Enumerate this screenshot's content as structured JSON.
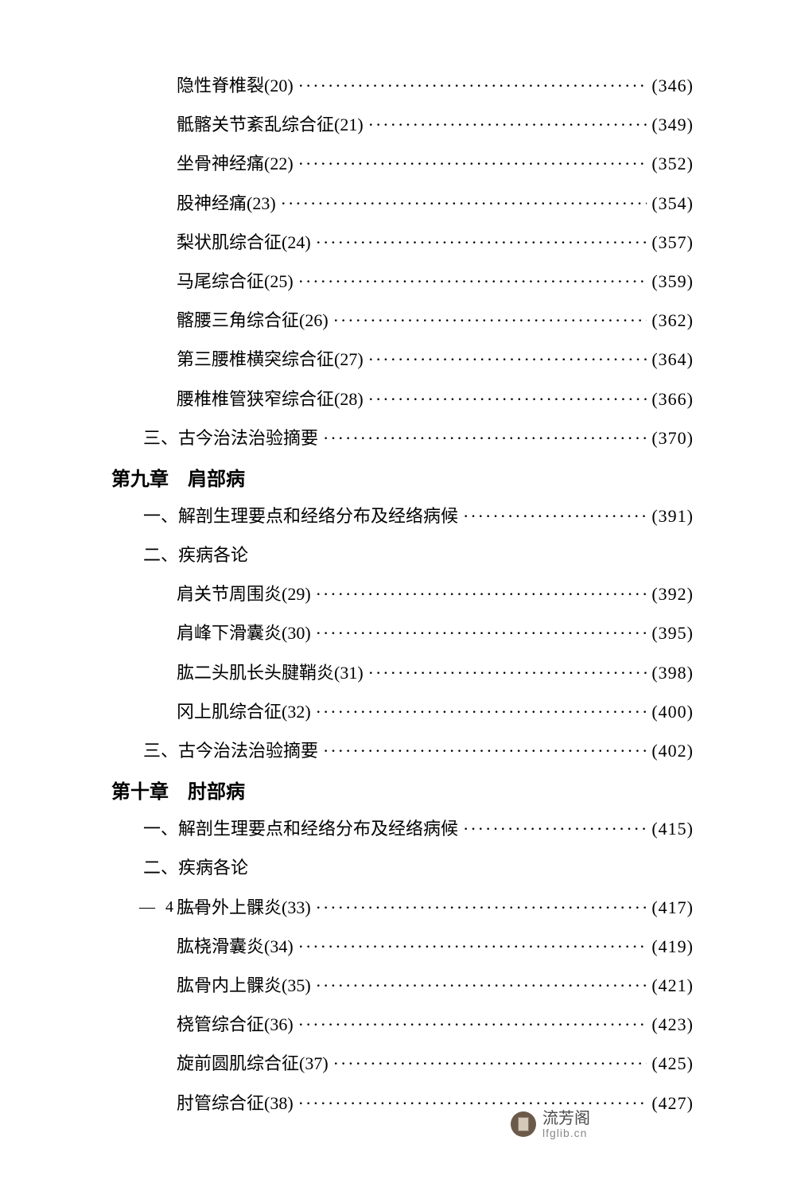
{
  "entries": [
    {
      "type": "item",
      "indent": 3,
      "label": "隐性脊椎裂(20)",
      "page": "(346)"
    },
    {
      "type": "item",
      "indent": 3,
      "label": "骶髂关节紊乱综合征(21)",
      "page": "(349)"
    },
    {
      "type": "item",
      "indent": 3,
      "label": "坐骨神经痛(22)",
      "page": "(352)"
    },
    {
      "type": "item",
      "indent": 3,
      "label": "股神经痛(23)",
      "page": "(354)"
    },
    {
      "type": "item",
      "indent": 3,
      "label": "梨状肌综合征(24)",
      "page": "(357)"
    },
    {
      "type": "item",
      "indent": 3,
      "label": "马尾综合征(25)",
      "page": "(359)"
    },
    {
      "type": "item",
      "indent": 3,
      "label": "髂腰三角综合征(26)",
      "page": "(362)"
    },
    {
      "type": "item",
      "indent": 3,
      "label": "第三腰椎横突综合征(27)",
      "page": "(364)"
    },
    {
      "type": "item",
      "indent": 3,
      "label": "腰椎椎管狭窄综合征(28)",
      "page": "(366)"
    },
    {
      "type": "item",
      "indent": 2,
      "label": "三、古今治法治验摘要",
      "page": "(370)"
    },
    {
      "type": "chapter",
      "indent": 0,
      "label": "第九章　肩部病"
    },
    {
      "type": "item",
      "indent": 2,
      "label": "一、解剖生理要点和经络分布及经络病候",
      "page": "(391)"
    },
    {
      "type": "section",
      "indent": 2,
      "label": "二、疾病各论"
    },
    {
      "type": "item",
      "indent": 3,
      "label": "肩关节周围炎(29)",
      "page": "(392)"
    },
    {
      "type": "item",
      "indent": 3,
      "label": "肩峰下滑囊炎(30)",
      "page": "(395)"
    },
    {
      "type": "item",
      "indent": 3,
      "label": "肱二头肌长头腱鞘炎(31)",
      "page": "(398)"
    },
    {
      "type": "item",
      "indent": 3,
      "label": "冈上肌综合征(32)",
      "page": "(400)"
    },
    {
      "type": "item",
      "indent": 2,
      "label": "三、古今治法治验摘要",
      "page": "(402)"
    },
    {
      "type": "chapter",
      "indent": 0,
      "label": "第十章　肘部病"
    },
    {
      "type": "item",
      "indent": 2,
      "label": "一、解剖生理要点和经络分布及经络病候",
      "page": "(415)"
    },
    {
      "type": "section",
      "indent": 2,
      "label": "二、疾病各论"
    },
    {
      "type": "item",
      "indent": 3,
      "label": "肱骨外上髁炎(33)",
      "page": "(417)"
    },
    {
      "type": "item",
      "indent": 3,
      "label": "肱桡滑囊炎(34)",
      "page": "(419)"
    },
    {
      "type": "item",
      "indent": 3,
      "label": "肱骨内上髁炎(35)",
      "page": "(421)"
    },
    {
      "type": "item",
      "indent": 3,
      "label": "桡管综合征(36)",
      "page": "(423)"
    },
    {
      "type": "item",
      "indent": 3,
      "label": "旋前圆肌综合征(37)",
      "page": "(425)"
    },
    {
      "type": "item",
      "indent": 3,
      "label": "肘管综合征(38)",
      "page": "(427)"
    }
  ],
  "pageNumber": "— 4 —",
  "watermark": {
    "name": "流芳阁",
    "url": "lfglib.cn"
  }
}
